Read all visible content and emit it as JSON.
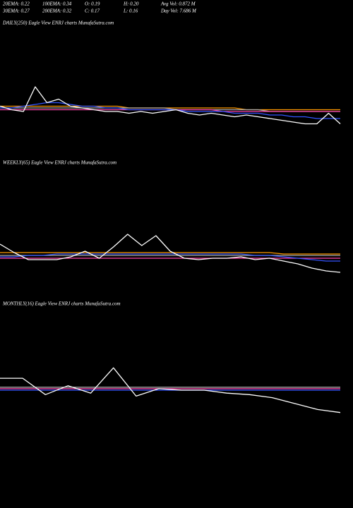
{
  "header": [
    [
      "20EMA: 0.22",
      "100EMA: 0.34",
      "O: 0.19",
      "H: 0.20",
      "Avg Vol: 0.872 M"
    ],
    [
      "30EMA: 0.27",
      "200EMA: 0.32",
      "C: 0.17",
      "L: 0.16",
      "Day Vol: 7.686 M"
    ]
  ],
  "chart_data": [
    {
      "type": "line",
      "title": "DAILY(250) Eagle View ENRJ charts MunafaSutra.com",
      "ylim": [
        0,
        0.7
      ],
      "series": [
        {
          "color": "#ff9900",
          "values": [
            0.27,
            0.27,
            0.27,
            0.27,
            0.27,
            0.27,
            0.27,
            0.27,
            0.27,
            0.27,
            0.27,
            0.26,
            0.26,
            0.26,
            0.26,
            0.26,
            0.26,
            0.26,
            0.26,
            0.26,
            0.26,
            0.25,
            0.25,
            0.25,
            0.25,
            0.25,
            0.25,
            0.25,
            0.25,
            0.25
          ]
        },
        {
          "color": "#aaaaaa",
          "values": [
            0.26,
            0.26,
            0.26,
            0.26,
            0.26,
            0.26,
            0.26,
            0.26,
            0.26,
            0.26,
            0.26,
            0.26,
            0.26,
            0.26,
            0.26,
            0.25,
            0.25,
            0.25,
            0.25,
            0.25,
            0.25,
            0.25,
            0.25,
            0.24,
            0.24,
            0.24,
            0.24,
            0.24,
            0.24,
            0.24
          ]
        },
        {
          "color": "#ff44aa",
          "values": [
            0.25,
            0.25,
            0.25,
            0.25,
            0.25,
            0.25,
            0.25,
            0.25,
            0.25,
            0.25,
            0.25,
            0.25,
            0.25,
            0.25,
            0.25,
            0.25,
            0.25,
            0.25,
            0.25,
            0.24,
            0.24,
            0.24,
            0.24,
            0.24,
            0.24,
            0.24,
            0.24,
            0.24,
            0.24,
            0.24
          ]
        },
        {
          "color": "#3355ff",
          "values": [
            0.26,
            0.26,
            0.27,
            0.28,
            0.29,
            0.29,
            0.28,
            0.27,
            0.27,
            0.26,
            0.26,
            0.25,
            0.25,
            0.25,
            0.25,
            0.25,
            0.24,
            0.24,
            0.24,
            0.24,
            0.23,
            0.23,
            0.23,
            0.22,
            0.22,
            0.21,
            0.21,
            0.2,
            0.2,
            0.2
          ]
        },
        {
          "color": "#ffffff",
          "values": [
            0.27,
            0.25,
            0.24,
            0.38,
            0.29,
            0.31,
            0.27,
            0.26,
            0.25,
            0.24,
            0.24,
            0.23,
            0.24,
            0.23,
            0.24,
            0.25,
            0.23,
            0.22,
            0.23,
            0.22,
            0.21,
            0.22,
            0.21,
            0.2,
            0.19,
            0.18,
            0.17,
            0.17,
            0.23,
            0.17
          ]
        }
      ]
    },
    {
      "type": "line",
      "title": "WEEKLY(65) Eagle View ENRJ charts MunafaSutra.com",
      "ylim": [
        0.1,
        0.9
      ],
      "series": [
        {
          "color": "#ff9900",
          "values": [
            0.31,
            0.31,
            0.31,
            0.31,
            0.31,
            0.31,
            0.31,
            0.31,
            0.31,
            0.31,
            0.31,
            0.31,
            0.31,
            0.31,
            0.31,
            0.31,
            0.31,
            0.31,
            0.31,
            0.31,
            0.3,
            0.3,
            0.3,
            0.3,
            0.3
          ]
        },
        {
          "color": "#aaaaaa",
          "values": [
            0.29,
            0.29,
            0.29,
            0.29,
            0.29,
            0.29,
            0.29,
            0.29,
            0.29,
            0.29,
            0.29,
            0.29,
            0.29,
            0.29,
            0.29,
            0.29,
            0.29,
            0.29,
            0.29,
            0.29,
            0.29,
            0.29,
            0.29,
            0.29,
            0.29
          ]
        },
        {
          "color": "#ff44aa",
          "values": [
            0.27,
            0.27,
            0.27,
            0.27,
            0.27,
            0.27,
            0.27,
            0.27,
            0.27,
            0.27,
            0.27,
            0.27,
            0.27,
            0.27,
            0.27,
            0.27,
            0.27,
            0.27,
            0.27,
            0.27,
            0.27,
            0.27,
            0.27,
            0.27,
            0.27
          ]
        },
        {
          "color": "#3355ff",
          "values": [
            0.28,
            0.28,
            0.29,
            0.29,
            0.3,
            0.3,
            0.3,
            0.3,
            0.3,
            0.3,
            0.3,
            0.3,
            0.3,
            0.3,
            0.3,
            0.3,
            0.3,
            0.3,
            0.29,
            0.29,
            0.28,
            0.27,
            0.26,
            0.25,
            0.25
          ]
        },
        {
          "color": "#ffffff",
          "values": [
            0.37,
            0.31,
            0.26,
            0.26,
            0.26,
            0.28,
            0.32,
            0.27,
            0.35,
            0.44,
            0.36,
            0.43,
            0.32,
            0.27,
            0.26,
            0.27,
            0.27,
            0.28,
            0.26,
            0.27,
            0.25,
            0.23,
            0.2,
            0.18,
            0.17
          ]
        }
      ]
    },
    {
      "type": "line",
      "title": "MONTHLY(16) Eagle View ENRJ charts MunafaSutra.com",
      "ylim": [
        0.05,
        0.95
      ],
      "series": [
        {
          "color": "#aaaaaa",
          "values": [
            0.34,
            0.34,
            0.34,
            0.34,
            0.34,
            0.34,
            0.34,
            0.34,
            0.34,
            0.34,
            0.34,
            0.34,
            0.34,
            0.34,
            0.34,
            0.34
          ]
        },
        {
          "color": "#ff44aa",
          "values": [
            0.33,
            0.33,
            0.33,
            0.33,
            0.33,
            0.33,
            0.33,
            0.33,
            0.33,
            0.33,
            0.33,
            0.33,
            0.33,
            0.33,
            0.33,
            0.33
          ]
        },
        {
          "color": "#3355ff",
          "values": [
            0.32,
            0.32,
            0.32,
            0.32,
            0.32,
            0.32,
            0.32,
            0.32,
            0.32,
            0.32,
            0.32,
            0.32,
            0.32,
            0.32,
            0.32,
            0.32
          ]
        },
        {
          "color": "#ffffff",
          "values": [
            0.4,
            0.4,
            0.29,
            0.35,
            0.3,
            0.47,
            0.28,
            0.33,
            0.32,
            0.32,
            0.3,
            0.29,
            0.27,
            0.23,
            0.19,
            0.17
          ]
        }
      ]
    }
  ]
}
